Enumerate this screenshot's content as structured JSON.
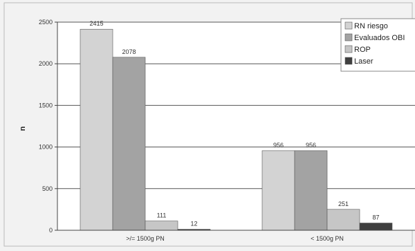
{
  "chart_data": {
    "type": "bar",
    "title": "",
    "xlabel": "",
    "ylabel": "n",
    "ylim": [
      0,
      2500
    ],
    "yticks": [
      0,
      500,
      1000,
      1500,
      2000,
      2500
    ],
    "grid": true,
    "legend_position": "top-right",
    "categories": [
      ">/= 1500g PN",
      "< 1500g PN"
    ],
    "series": [
      {
        "name": "RN riesgo",
        "values": [
          2415,
          956
        ],
        "color": "#d3d3d3"
      },
      {
        "name": "Evaluados OBI",
        "values": [
          2078,
          956
        ],
        "color": "#a3a3a3"
      },
      {
        "name": "ROP",
        "values": [
          111,
          251
        ],
        "color": "#c6c6c6"
      },
      {
        "name": "Laser",
        "values": [
          12,
          87
        ],
        "color": "#3f3f3f"
      }
    ],
    "data_labels": [
      [
        "2415",
        "956"
      ],
      [
        "2078",
        "956"
      ],
      [
        "111",
        "251"
      ],
      [
        "12",
        "87"
      ]
    ]
  }
}
